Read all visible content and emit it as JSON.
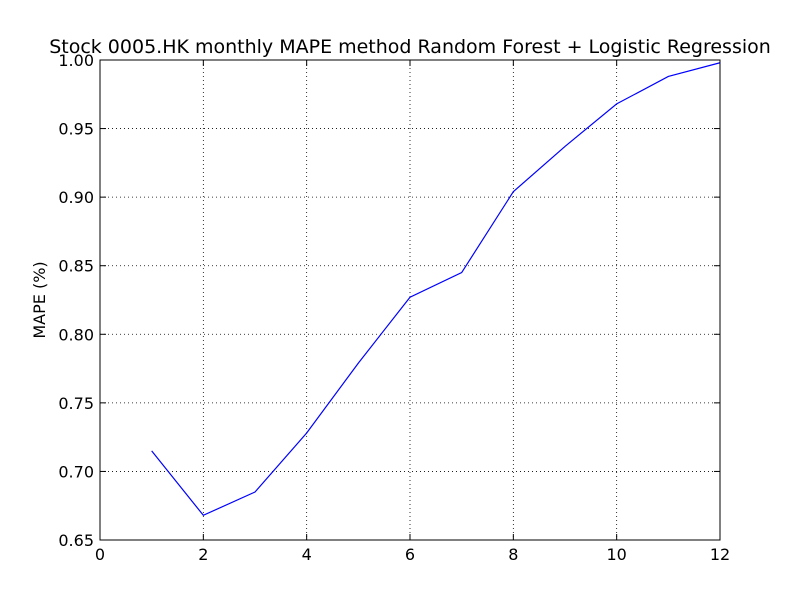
{
  "chart_data": {
    "type": "line",
    "title": "Stock 0005.HK monthly MAPE method Random Forest + Logistic Regression",
    "xlabel": "",
    "ylabel": "MAPE (%)",
    "xlim": [
      0,
      12
    ],
    "ylim": [
      0.65,
      1.0
    ],
    "xticks": [
      "0",
      "2",
      "4",
      "6",
      "8",
      "10",
      "12"
    ],
    "yticks": [
      "0.65",
      "0.70",
      "0.75",
      "0.80",
      "0.85",
      "0.90",
      "0.95",
      "1.00"
    ],
    "grid": true,
    "series": [
      {
        "color": "#0000ff",
        "x": [
          1,
          2,
          3,
          4,
          5,
          6,
          7,
          8,
          9,
          10,
          11,
          12
        ],
        "y": [
          0.715,
          0.668,
          0.685,
          0.728,
          0.779,
          0.827,
          0.845,
          0.904,
          0.937,
          0.968,
          0.988,
          0.998
        ]
      }
    ]
  }
}
